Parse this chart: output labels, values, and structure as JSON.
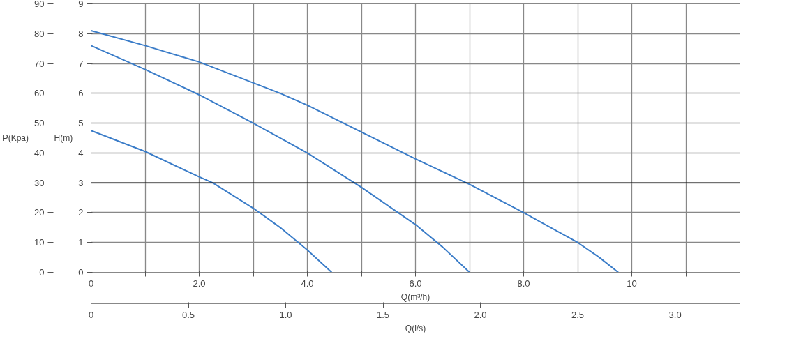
{
  "chart_data": {
    "type": "line",
    "xlabel": "Q(m³/h)",
    "x2label": "Q(l/s)",
    "ylabel": "H(m)",
    "y2label": "P(Kpa)",
    "xlim": [
      0,
      12
    ],
    "xticks": [
      0,
      {
        "value": 1,
        "label": null
      },
      {
        "value": 2,
        "label": "2.0"
      },
      {
        "value": 3,
        "label": null
      },
      {
        "value": 4,
        "label": "4.0"
      },
      {
        "value": 5,
        "label": null
      },
      {
        "value": 6,
        "label": "6.0"
      },
      {
        "value": 7,
        "label": null
      },
      {
        "value": 8,
        "label": "8.0"
      },
      {
        "value": 9,
        "label": null
      },
      10,
      {
        "value": 11,
        "label": null
      },
      {
        "value": 12,
        "label": null
      }
    ],
    "x2lim": [
      0,
      3.333
    ],
    "x2ticks": [
      0,
      0.5,
      {
        "value": 1,
        "label": "1.0"
      },
      1.5,
      {
        "value": 2,
        "label": "2.0"
      },
      2.5,
      {
        "value": 3,
        "label": "3.0"
      }
    ],
    "ylim": [
      0,
      9
    ],
    "yticks": [
      0,
      1,
      2,
      3,
      4,
      5,
      6,
      7,
      8,
      9
    ],
    "y2lim": [
      0,
      90
    ],
    "y2ticks": [
      0,
      10,
      20,
      30,
      40,
      50,
      60,
      70,
      80,
      90
    ],
    "grid": true,
    "ref_lines": [
      {
        "axis": "y",
        "value": 3,
        "color": "#000000"
      }
    ],
    "series": [
      {
        "color": "#3a7cc8",
        "x": [
          0,
          1,
          2,
          3,
          3.5,
          4,
          5,
          6,
          7,
          8,
          9,
          9.4,
          9.75
        ],
        "values": [
          8.1,
          7.6,
          7.05,
          6.35,
          6.0,
          5.6,
          4.7,
          3.8,
          2.95,
          2.0,
          1.0,
          0.5,
          0
        ]
      },
      {
        "color": "#3a7cc8",
        "x": [
          0,
          1,
          2,
          3,
          4,
          5,
          6,
          6.5,
          7
        ],
        "values": [
          7.6,
          6.8,
          5.95,
          5.0,
          4.0,
          2.85,
          1.6,
          0.85,
          0
        ]
      },
      {
        "color": "#3a7cc8",
        "x": [
          0,
          1,
          2,
          2.25,
          3,
          3.5,
          4,
          4.45
        ],
        "values": [
          4.75,
          4.05,
          3.2,
          3.0,
          2.15,
          1.5,
          0.75,
          0
        ]
      }
    ]
  }
}
